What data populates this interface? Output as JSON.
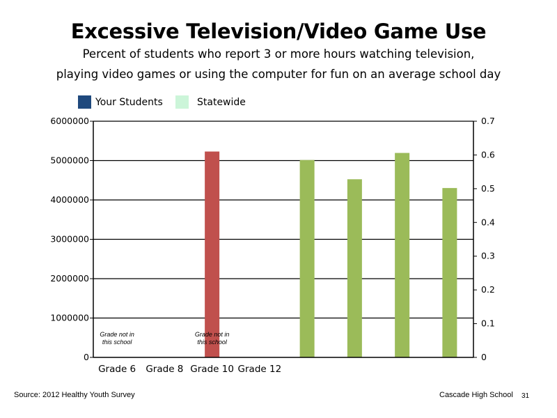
{
  "title": "Excessive Television/Video Game Use",
  "subtitle_line1": "Percent of students who report 3 or more hours watching television,",
  "subtitle_line2": "playing video games or using the computer for fun on an average school day",
  "legend": [
    {
      "label": "Your Students",
      "color": "#1f497d"
    },
    {
      "label": "Statewide",
      "color": "#ccf5d9"
    }
  ],
  "footer": {
    "source": "Source: 2012 Healthy Youth Survey",
    "school": "Cascade High School",
    "page": "31"
  },
  "chart_data": {
    "type": "bar",
    "left_axis": {
      "ticks": [
        "0",
        "1000000",
        "2000000",
        "3000000",
        "4000000",
        "5000000",
        "6000000"
      ],
      "ylim": [
        0,
        6000000
      ]
    },
    "right_axis": {
      "ticks": [
        "0",
        "0.1",
        "0.2",
        "0.3",
        "0.4",
        "0.5",
        "0.6",
        "0.7"
      ],
      "ylim": [
        0,
        0.7
      ]
    },
    "categories": [
      "Grade 6",
      "Grade 8",
      "Grade 10",
      "Grade 12"
    ],
    "bars": [
      {
        "slot": 2,
        "value": 5230000,
        "axis": "left",
        "color": "#c0504d"
      },
      {
        "slot": 4,
        "value": 0.585,
        "axis": "right",
        "color": "#9bbb59"
      },
      {
        "slot": 5,
        "value": 0.528,
        "axis": "right",
        "color": "#9bbb59"
      },
      {
        "slot": 6,
        "value": 0.606,
        "axis": "right",
        "color": "#9bbb59"
      },
      {
        "slot": 7,
        "value": 0.502,
        "axis": "right",
        "color": "#9bbb59"
      }
    ],
    "annotations": [
      {
        "slot": 0,
        "lines": [
          "Grade not in",
          "this school"
        ]
      },
      {
        "slot": 2,
        "lines": [
          "Grade not in",
          "this school"
        ]
      }
    ]
  }
}
